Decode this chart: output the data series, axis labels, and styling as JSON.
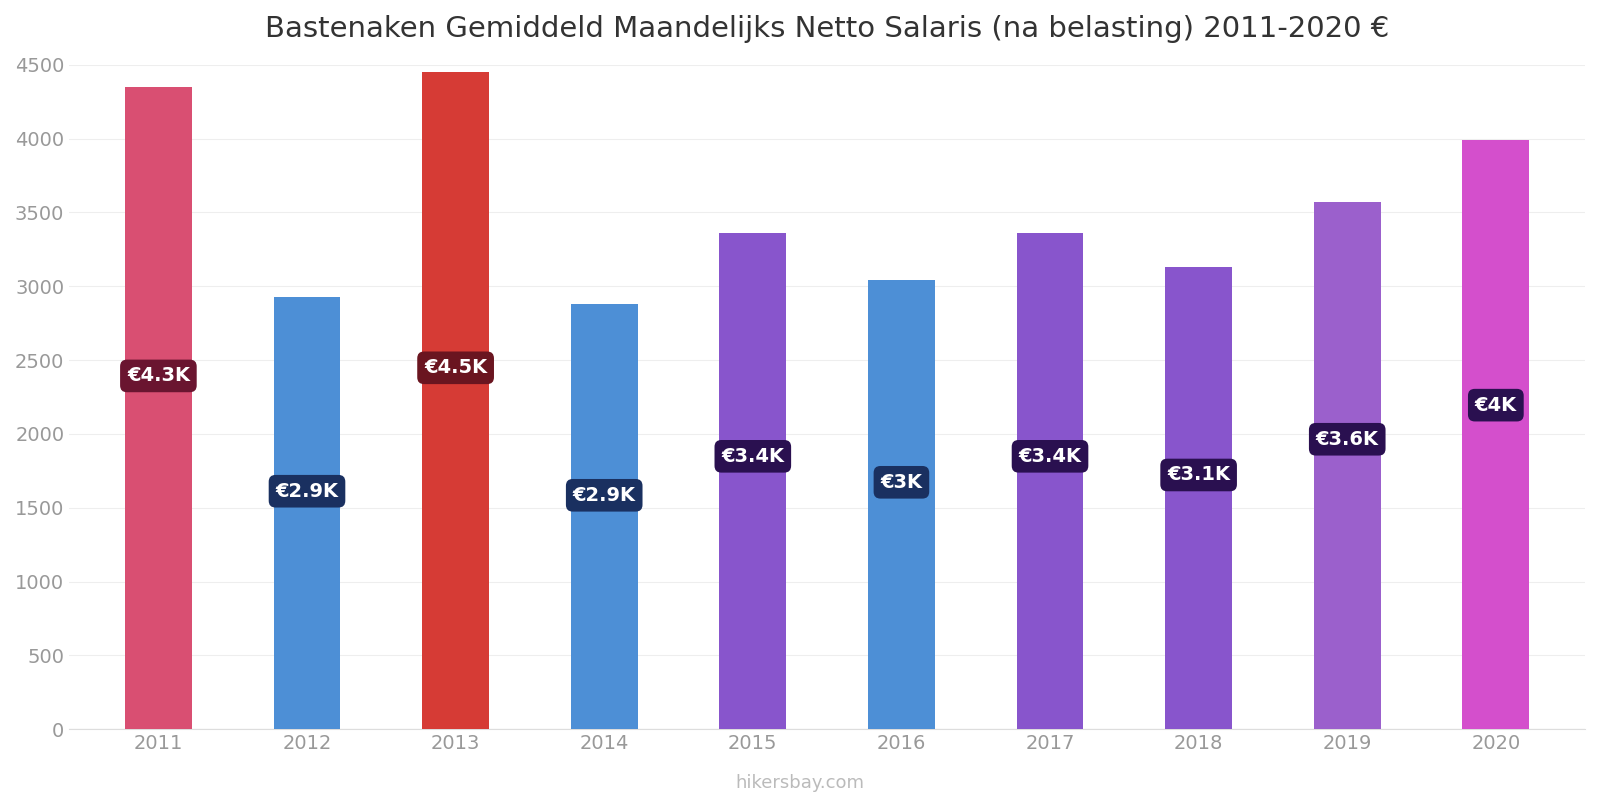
{
  "title": "Bastenaken Gemiddeld Maandelijks Netto Salaris (na belasting) 2011-2020 €",
  "years": [
    2011,
    2012,
    2013,
    2014,
    2015,
    2016,
    2017,
    2018,
    2019,
    2020
  ],
  "values": [
    4350,
    2930,
    4450,
    2880,
    3360,
    3040,
    3360,
    3130,
    3570,
    3990
  ],
  "labels": [
    "€4.3K",
    "€2.9K",
    "€4.5K",
    "€2.9K",
    "€3.4K",
    "€3K",
    "€3.4K",
    "€3.1K",
    "€3.6K",
    "€4K"
  ],
  "bar_colors": [
    "#D94F72",
    "#4D8FD6",
    "#D63B35",
    "#4D8FD6",
    "#8855CC",
    "#4D8FD6",
    "#8855CC",
    "#8855CC",
    "#9B60CC",
    "#D44FCC"
  ],
  "label_bg_colors": [
    "#6A1530",
    "#1A3060",
    "#6A1520",
    "#1A3060",
    "#2A1050",
    "#1A3060",
    "#2A1050",
    "#2A1050",
    "#2A1050",
    "#2A1050"
  ],
  "ylim": [
    0,
    4500
  ],
  "yticks": [
    0,
    500,
    1000,
    1500,
    2000,
    2500,
    3000,
    3500,
    4000,
    4500
  ],
  "footer": "hikersbay.com",
  "background_color": "#FFFFFF",
  "label_fontsize": 14,
  "title_fontsize": 21,
  "axis_tick_fontsize": 14,
  "footer_fontsize": 13,
  "bar_width": 0.45
}
